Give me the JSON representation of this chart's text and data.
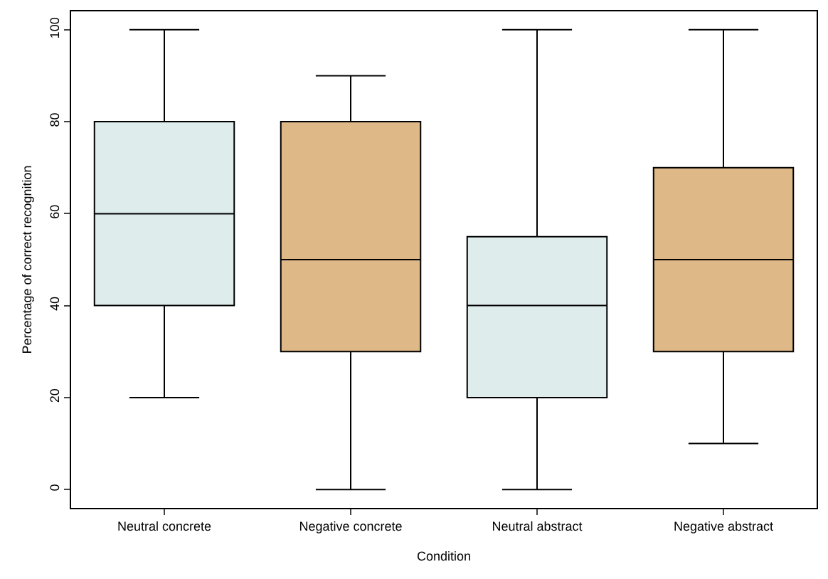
{
  "chart_data": {
    "type": "box",
    "xlabel": "Condition",
    "ylabel": "Percentage of correct recognition",
    "categories": [
      "Neutral concrete",
      "Negative concrete",
      "Neutral abstract",
      "Negative abstract"
    ],
    "colors": [
      "#deecec",
      "#deb887",
      "#deecec",
      "#deb887"
    ],
    "boxes": [
      {
        "low": 20,
        "q1": 40,
        "median": 60,
        "q3": 80,
        "high": 100
      },
      {
        "low": 0,
        "q1": 30,
        "median": 50,
        "q3": 80,
        "high": 90
      },
      {
        "low": 0,
        "q1": 20,
        "median": 40,
        "q3": 55,
        "high": 100
      },
      {
        "low": 10,
        "q1": 30,
        "median": 50,
        "q3": 70,
        "high": 100
      }
    ],
    "ylim": [
      -4,
      104
    ],
    "yticks": [
      0,
      20,
      40,
      60,
      80,
      100
    ],
    "grid": false
  }
}
